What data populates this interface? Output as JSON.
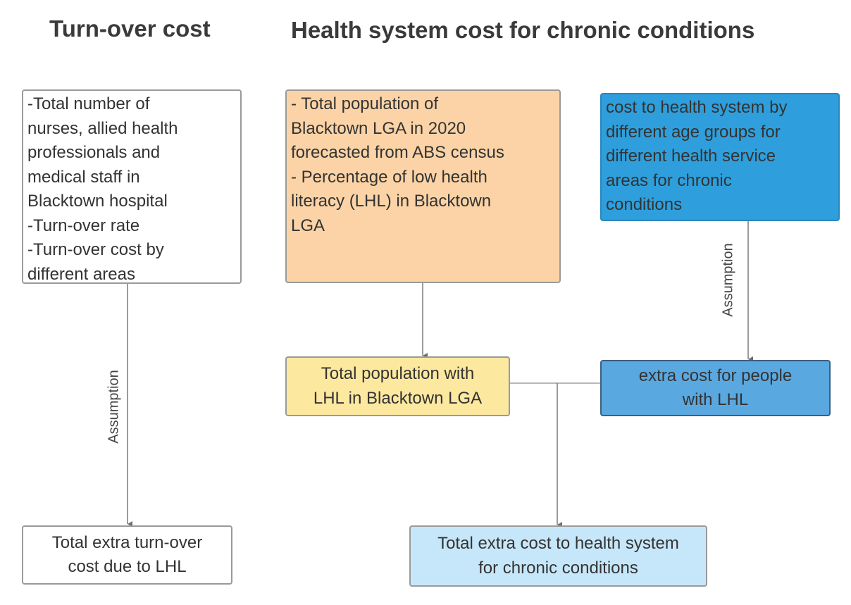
{
  "headings": {
    "left": "Turn-over cost",
    "right": "Health system cost for chronic conditions"
  },
  "boxes": {
    "turnover_inputs": "-Total number of\nnurses, allied health\nprofessionals and\nmedical staff in\nBlacktown hospital\n-Turn-over rate\n-Turn-over cost by\ndifferent areas",
    "turnover_total": "Total extra turn-over\ncost due to LHL",
    "population_inputs": "- Total population of\nBlacktown LGA in 2020\nforecasted from ABS census\n- Percentage of low health\nliteracy (LHL) in Blacktown\nLGA",
    "health_cost_inputs": "cost to health system by\ndifferent age groups for\ndifferent health service\nareas for chronic\nconditions",
    "population_lhl": "Total population with\nLHL in Blacktown LGA",
    "extra_cost_lhl": "extra cost for people\nwith LHL",
    "total_health_cost": "Total extra cost to health system\nfor chronic conditions"
  },
  "edge_labels": {
    "left_assumption": "Assumption",
    "right_assumption": "Assumption"
  },
  "colors": {
    "population_inputs": "#fbd3a6",
    "health_cost_inputs": "#2e9fdc",
    "population_lhl": "#fde8a0",
    "extra_cost_lhl": "#5aa8e0",
    "total_health_cost": "#c6e7f9",
    "white": "#ffffff"
  }
}
